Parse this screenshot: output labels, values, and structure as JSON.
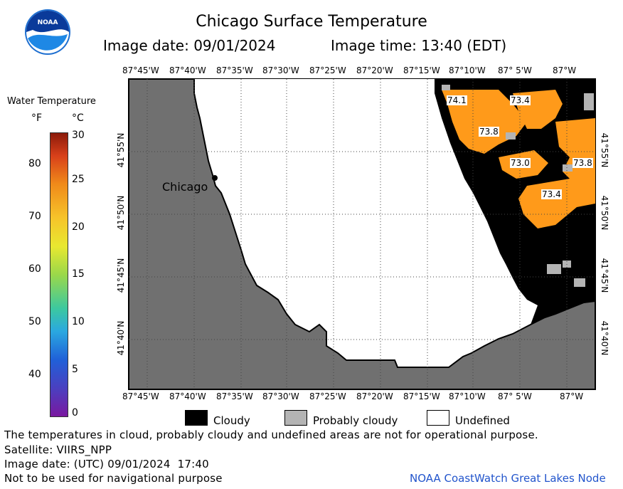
{
  "header": {
    "logo_text": "NOAA",
    "title": "Chicago Surface Temperature",
    "image_date": "Image date: 09/01/2024",
    "image_time": "Image time: 13:40 (EDT)"
  },
  "colorbar": {
    "title": "Water Temperature",
    "unit_f": "°F",
    "unit_c": "°C",
    "f_ticks": [
      "80",
      "70",
      "60",
      "50",
      "40"
    ],
    "c_ticks": [
      "30",
      "25",
      "20",
      "15",
      "10",
      "5",
      "0"
    ]
  },
  "map": {
    "lon_labels": [
      "87°45'W",
      "87°40'W",
      "87°35'W",
      "87°30'W",
      "87°25'W",
      "87°20'W",
      "87°15'W",
      "87°10'W",
      "87° 5'W",
      "87°W"
    ],
    "lat_labels": [
      "41°55'N",
      "41°50'N",
      "41°45'N",
      "41°40'N"
    ],
    "city_label": "Chicago",
    "temperature_labels": [
      "74.1",
      "73.4",
      "73.8",
      "73.0",
      "73.8",
      "73.4"
    ],
    "colors": {
      "land": "#707070",
      "cloud": "#000000",
      "probably_cloudy": "#b4b4b4",
      "undefined": "#ffffff",
      "water_warm": "#ff9a1a"
    }
  },
  "key": {
    "cloudy": "Cloudy",
    "probably_cloudy": "Probably cloudy",
    "undefined": "Undefined"
  },
  "footer": {
    "disclaimer": "The temperatures in cloud, probably cloudy and undefined areas are not for operational purpose.",
    "satellite": "Satellite: VIIRS_NPP",
    "utc_date": "Image date: (UTC) 09/01/2024  17:40",
    "nav_warning": "Not to be used for navigational purpose",
    "node": "NOAA CoastWatch Great Lakes Node"
  }
}
